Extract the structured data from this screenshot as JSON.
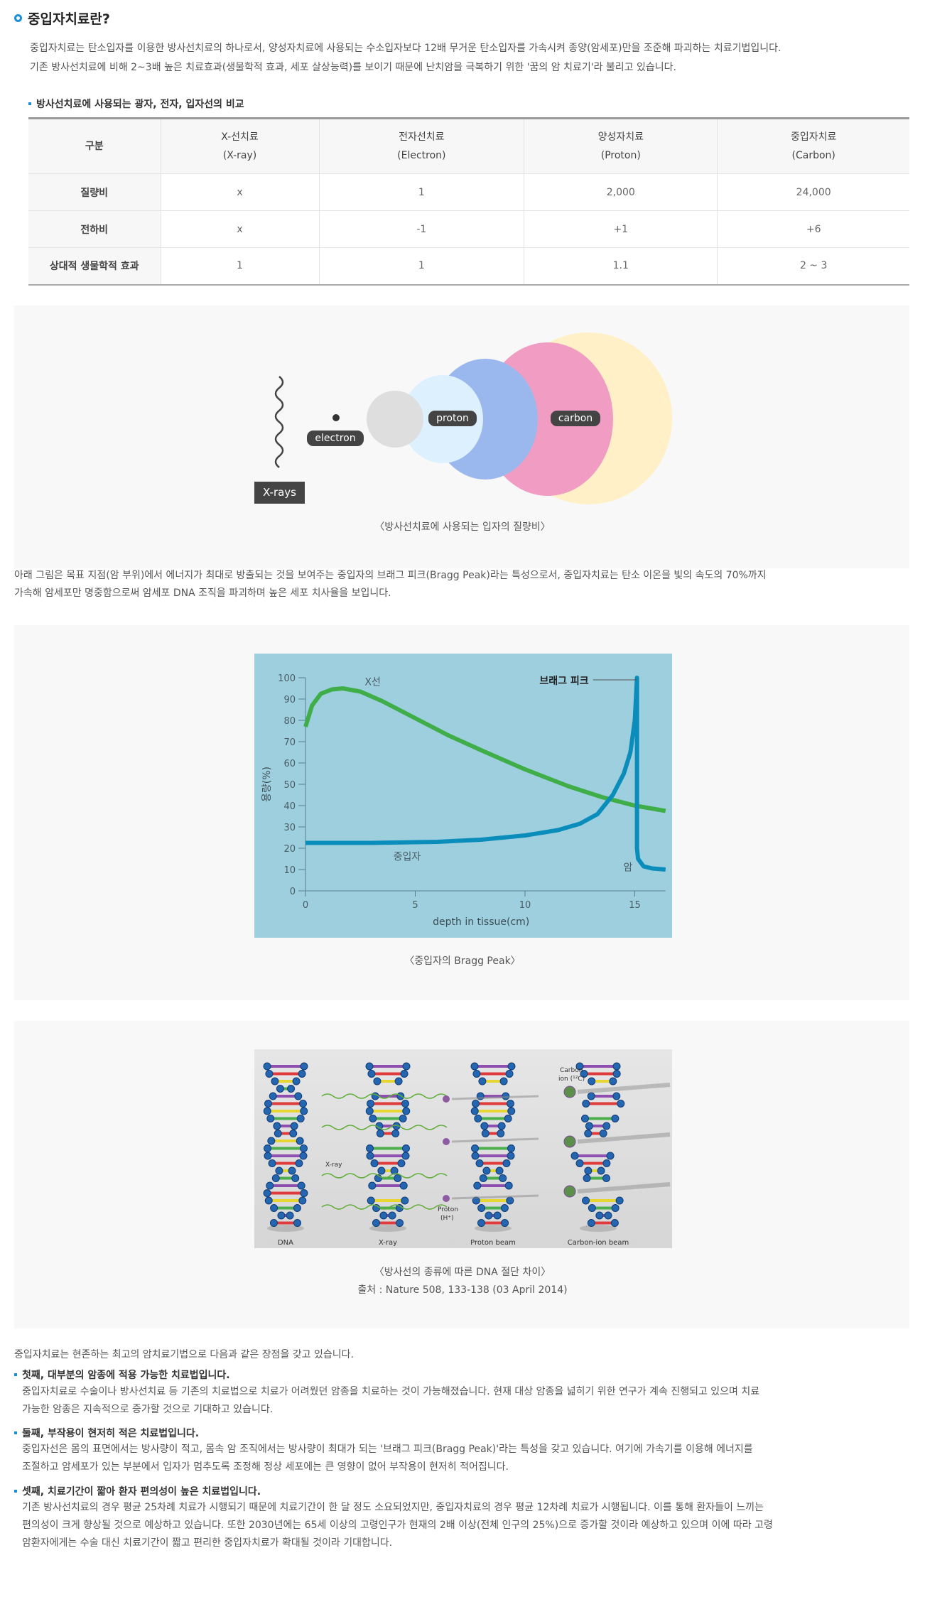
{
  "title": "중입자치료란?",
  "intro": [
    "중입자치료는 탄소입자를 이용한 방사선치료의 하나로서, 양성자치료에 사용되는 수소입자보다 12배 무거운 탄소입자를 가속시켜 종양(암세포)만을 조준해 파괴하는 치료기법입니다.",
    "기존 방사선치료에 비해 2~3배 높은 치료효과(생물학적 효과, 세포 살상능력)를 보이기 때문에 난치암을 극복하기 위한 '꿈의 암 치료기'라 불리고 있습니다."
  ],
  "table": {
    "title": "방사선치료에 사용되는 광자, 전자, 입자선의 비교",
    "header": [
      "구분",
      [
        "X-선치료",
        "(X-ray)"
      ],
      [
        "전자선치료",
        "(Electron)"
      ],
      [
        "양성자치료",
        "(Proton)"
      ],
      [
        "중입자치료",
        "(Carbon)"
      ]
    ],
    "rows": [
      [
        "질량비",
        "x",
        "1",
        "2,000",
        "24,000"
      ],
      [
        "전하비",
        "x",
        "-1",
        "+1",
        "+6"
      ],
      [
        "상대적 생물학적 효과",
        "1",
        "1",
        "1.1",
        "2 ~ 3"
      ]
    ]
  },
  "particles": {
    "labels": {
      "xrays": "X-rays",
      "electron": "electron",
      "proton": "proton",
      "carbon": "carbon"
    },
    "caption": "〈방사선치료에 사용되는 입자의 질량비〉",
    "colors": {
      "gray": "#dedede",
      "light_blue": "#dcf0fd",
      "blue": "#9bb8ee",
      "pink": "#f09cc3",
      "yellow": "#fff0c8"
    }
  },
  "bragg_text": [
    "아래 그림은 목표 지점(암 부위)에서 에너지가 최대로 방출되는 것을 보여주는 중입자의 브래그 피크(Bragg Peak)라는 특성으로서, 중입자치료는 탄소 이온을 빛의 속도의 70%까지",
    "가속해 암세포만 명중함으로써 암세포 DNA 조직을 파괴하며 높은 세포 치사율을 보입니다."
  ],
  "chart_data": {
    "type": "line",
    "xlabel": "depth in tissue(cm)",
    "ylabel": "용량(%)",
    "xlim": [
      0,
      16.4
    ],
    "ylim": [
      0,
      100
    ],
    "xticks": [
      0,
      5,
      10,
      15
    ],
    "yticks": [
      0,
      10,
      20,
      30,
      40,
      50,
      60,
      70,
      80,
      90,
      100
    ],
    "grid": false,
    "background": "#9dcfdf",
    "series": [
      {
        "name": "X선",
        "color": "#3fad48",
        "x": [
          0,
          0.3,
          0.7,
          1.2,
          1.7,
          2.5,
          3.5,
          5,
          6.5,
          8,
          10,
          12,
          13.5,
          15,
          16.4
        ],
        "y": [
          77,
          87,
          92.5,
          94.5,
          95,
          93.5,
          89,
          81,
          73,
          66,
          57,
          49,
          44,
          40,
          37.5
        ]
      },
      {
        "name": "중입자",
        "color": "#0b8dbb",
        "x": [
          0,
          3,
          6,
          8,
          10,
          11.5,
          12.5,
          13.3,
          14,
          14.5,
          14.8,
          15,
          15.1,
          15.1,
          15.15,
          15.4,
          15.8,
          16.4
        ],
        "y": [
          22.5,
          22.5,
          23,
          24,
          26,
          28.5,
          31.5,
          36,
          45,
          55,
          65,
          80,
          100,
          20,
          15,
          11.5,
          10.5,
          10
        ]
      }
    ],
    "annotations": {
      "peak": "브래그 피크",
      "cancer": "암",
      "xray": "X선",
      "carbon": "중입자"
    },
    "caption": "〈중입자의 Bragg Peak〉"
  },
  "dna": {
    "panels": [
      "DNA",
      "X-ray",
      "Proton beam",
      "Carbon-ion beam"
    ],
    "callouts": {
      "xray": "X-ray",
      "proton": "Proton",
      "proton2": "(H⁺)",
      "carbon": "Carbon",
      "carbon2": "ion (¹²C)"
    },
    "caption": "〈방사선의 종류에 따른 DNA 절단 차이〉",
    "source": "출처 : Nature 508, 133-138 (03 April 2014)"
  },
  "advantages": {
    "intro": "중입자치료는 현존하는 최고의 암치료기법으로 다음과 같은 장점을 갖고 있습니다.",
    "items": [
      {
        "title": "첫째, 대부분의 암종에 적용 가능한 치료법입니다.",
        "lines": [
          "중입자치료로 수술이나 방사선치료 등 기존의 치료법으로 치료가 어려웠던 암종을 치료하는 것이 가능해졌습니다. 현재 대상 암종을 넓히기 위한 연구가 계속 진행되고 있으며 치료",
          "가능한 암종은 지속적으로 증가할 것으로 기대하고 있습니다."
        ]
      },
      {
        "title": "둘째, 부작용이 현저히 적은 치료법입니다.",
        "lines": [
          "중입자선은 몸의 표면에서는 방사량이 적고, 몸속 암 조직에서는 방사량이 최대가 되는 '브래그 피크(Bragg Peak)'라는 특성을 갖고 있습니다. 여기에 가속기를 이용해 에너지를",
          "조절하고 암세포가 있는 부분에서 입자가 멈추도록 조정해 정상 세포에는 큰 영향이 없어 부작용이 현저히 적어집니다."
        ]
      },
      {
        "title": "셋째, 치료기간이 짧아 환자 편의성이 높은 치료법입니다.",
        "lines": [
          "기존 방사선치료의 경우 평균 25차례 치료가 시행되기 때문에 치료기간이 한 달 정도 소요되었지만, 중입자치료의 경우 평균 12차례 치료가 시행됩니다. 이를 통해 환자들이 느끼는",
          "편의성이 크게 향상될 것으로 예상하고 있습니다. 또한 2030년에는 65세 이상의 고령인구가 현재의 2배 이상(전체 인구의 25%)으로 증가할 것이라 예상하고 있으며 이에 따라 고령",
          "암환자에게는 수술 대신 치료기간이 짧고 편리한 중입자치료가 확대될 것이라 기대합니다."
        ]
      }
    ]
  }
}
